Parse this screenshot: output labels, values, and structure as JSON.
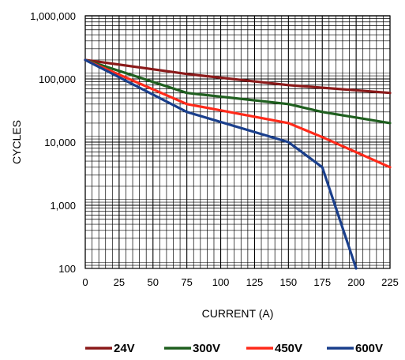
{
  "chart_data": {
    "type": "line",
    "xlabel": "CURRENT (A)",
    "ylabel": "CYCLES",
    "x_scale": "linear",
    "y_scale": "log",
    "xlim": [
      0,
      225
    ],
    "ylim": [
      100,
      1000000
    ],
    "x_ticks": [
      0,
      25,
      50,
      75,
      100,
      125,
      150,
      175,
      200,
      225
    ],
    "x_tick_labels": [
      "0",
      "25",
      "50",
      "75",
      "100",
      "125",
      "150",
      "175",
      "200",
      "225"
    ],
    "y_ticks": [
      100,
      1000,
      10000,
      100000,
      1000000
    ],
    "y_tick_labels": [
      "100",
      "1,000",
      "10,000",
      "100,000",
      "1,000,000"
    ],
    "grid": true,
    "legend_position": "bottom",
    "series": [
      {
        "name": "24V",
        "color": "#8b1a1a",
        "points": [
          [
            0,
            200000
          ],
          [
            75,
            120000
          ],
          [
            150,
            80000
          ],
          [
            225,
            60000
          ]
        ]
      },
      {
        "name": "300V",
        "color": "#1f5f1f",
        "points": [
          [
            0,
            200000
          ],
          [
            75,
            60000
          ],
          [
            150,
            40000
          ],
          [
            175,
            30000
          ],
          [
            225,
            20000
          ]
        ]
      },
      {
        "name": "450V",
        "color": "#ff2a1a",
        "points": [
          [
            0,
            200000
          ],
          [
            75,
            40000
          ],
          [
            150,
            20000
          ],
          [
            175,
            12000
          ],
          [
            225,
            4000
          ]
        ]
      },
      {
        "name": "600V",
        "color": "#1a3f8c",
        "points": [
          [
            0,
            200000
          ],
          [
            75,
            30000
          ],
          [
            150,
            10000
          ],
          [
            175,
            4000
          ],
          [
            200,
            100
          ]
        ]
      }
    ]
  }
}
